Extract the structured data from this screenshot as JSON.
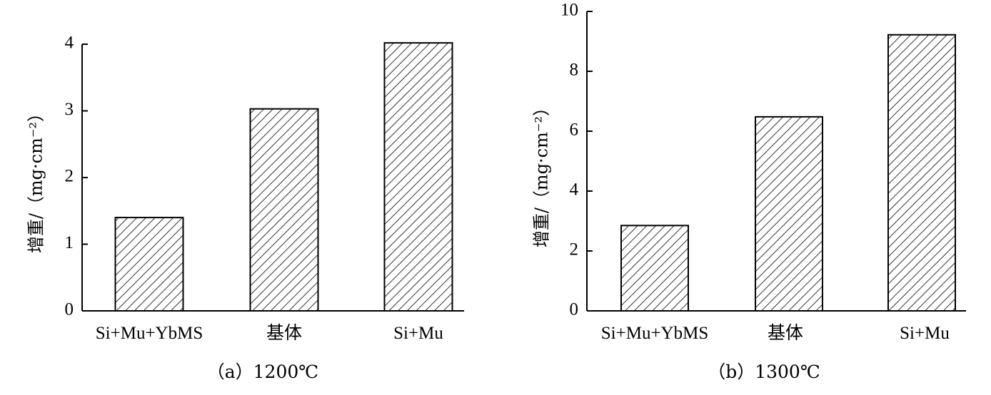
{
  "chart_data": [
    {
      "type": "bar",
      "caption": "（a）1200℃",
      "ylabel": "增重/（mg·cm⁻²）",
      "categories": [
        "Si+Mu+YbMS",
        "基体",
        "Si+Mu"
      ],
      "values": [
        1.4,
        3.03,
        4.02
      ],
      "ylim": [
        0,
        4
      ],
      "yticks": [
        "0",
        "1",
        "2",
        "3",
        "4"
      ],
      "pattern": "diagonal-hatch",
      "grid": false
    },
    {
      "type": "bar",
      "caption": "（b）1300℃",
      "ylabel": "增重/（mg·cm⁻²）",
      "categories": [
        "Si+Mu+YbMS",
        "基体",
        "Si+Mu"
      ],
      "values": [
        2.85,
        6.48,
        9.22
      ],
      "ylim": [
        0,
        10
      ],
      "yticks": [
        "0",
        "2",
        "4",
        "6",
        "8",
        "10"
      ],
      "pattern": "diagonal-hatch",
      "grid": false
    }
  ]
}
